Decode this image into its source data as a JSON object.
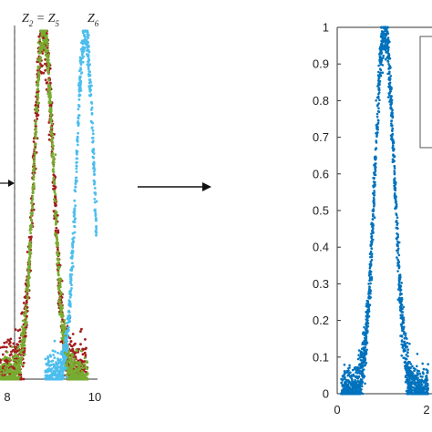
{
  "chart_data": [
    {
      "type": "scatter",
      "panel": "left",
      "annotations": [
        "Z2 = Z5",
        "Z6"
      ],
      "x_tick_labels": [
        "8",
        "10"
      ],
      "xlim": [
        7.9,
        10.0
      ],
      "ylim": [
        0,
        1
      ],
      "series": [
        {
          "color": "#a31c1c",
          "peak_x": 8.85,
          "width": 0.3,
          "noise": 0.05
        },
        {
          "color": "#77ac30",
          "peak_x": 8.85,
          "width": 0.3,
          "noise": 0.03
        },
        {
          "color": "#4dbeee",
          "peak_x": 9.75,
          "width": 0.27,
          "noise": 0.03
        }
      ],
      "vertical_dashed_line_x": 8.15
    },
    {
      "type": "scatter",
      "panel": "right",
      "xlim": [
        0,
        2.3
      ],
      "ylim": [
        0,
        1
      ],
      "x_tick_labels": [
        "0",
        "2"
      ],
      "y_tick_labels": [
        "0",
        "0.1",
        "0.2",
        "0.3",
        "0.4",
        "0.5",
        "0.6",
        "0.7",
        "0.8",
        "0.9",
        "1"
      ],
      "series": [
        {
          "color": "#0072bd",
          "peak_x": 1.15,
          "width": 0.33,
          "noise": 0.035
        }
      ]
    }
  ],
  "z_labels": {
    "z2": "Z",
    "z2_sub": "2",
    "eq": " = ",
    "z5": "Z",
    "z5_sub": "5",
    "z6": "Z",
    "z6_sub": "6"
  }
}
